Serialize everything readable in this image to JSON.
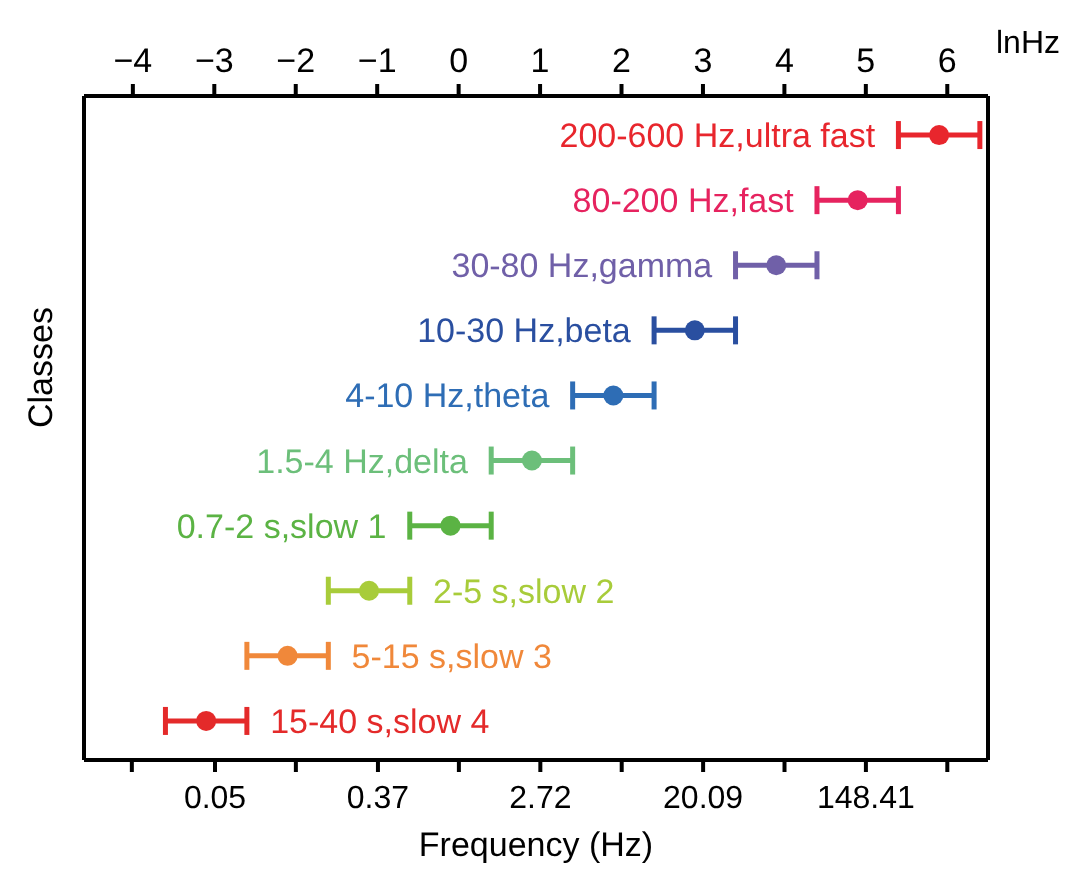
{
  "chart_data": {
    "type": "scatter",
    "orientation": "horizontal",
    "xlabel": "Frequency (Hz)",
    "ylabel": "Classes",
    "x2label": "lnHz",
    "log": "x",
    "categories": [
      "200-600 Hz,ultra fast",
      "80-200 Hz,fast",
      "30-80 Hz,gamma",
      "10-30 Hz,beta",
      "4-10 Hz,theta",
      "1.5-4 Hz,delta",
      "0.7-2 s,slow 1",
      "2-5 s,slow 2",
      "5-15 s,slow 3",
      "15-40 s,slow 4"
    ],
    "colors": [
      "#e8262d",
      "#e6235f",
      "#7060a8",
      "#2a4fa0",
      "#2e6db5",
      "#6cbf7a",
      "#5bb344",
      "#a8cc3a",
      "#f0883a",
      "#e42a2a"
    ],
    "series": [
      {
        "axis": "x2",
        "values": [
          5.9,
          4.9,
          3.9,
          2.9,
          1.9,
          0.9,
          -0.1,
          -1.1,
          -2.1,
          -3.1
        ],
        "errors": [
          0.5,
          0.5,
          0.5,
          0.5,
          0.5,
          0.5,
          0.5,
          0.5,
          0.5,
          0.5
        ]
      }
    ],
    "xlim": [
      0.01,
      665
    ],
    "xticks": [
      {
        "value": 0.018,
        "label": null
      },
      0.05,
      {
        "value": 0.135,
        "label": null
      },
      0.37,
      {
        "value": 1,
        "label": null
      },
      2.72,
      {
        "value": 7.39,
        "label": null
      },
      20.09,
      {
        "value": 54.6,
        "label": null
      },
      148.41,
      {
        "value": 403.4,
        "label": null
      }
    ],
    "x2lim": [
      -4.6,
      6.5
    ],
    "x2ticks": [
      -4,
      -3,
      -2,
      -1,
      0,
      1,
      2,
      3,
      4,
      5,
      6
    ],
    "tick_labels": "x",
    "marker": "circle"
  }
}
